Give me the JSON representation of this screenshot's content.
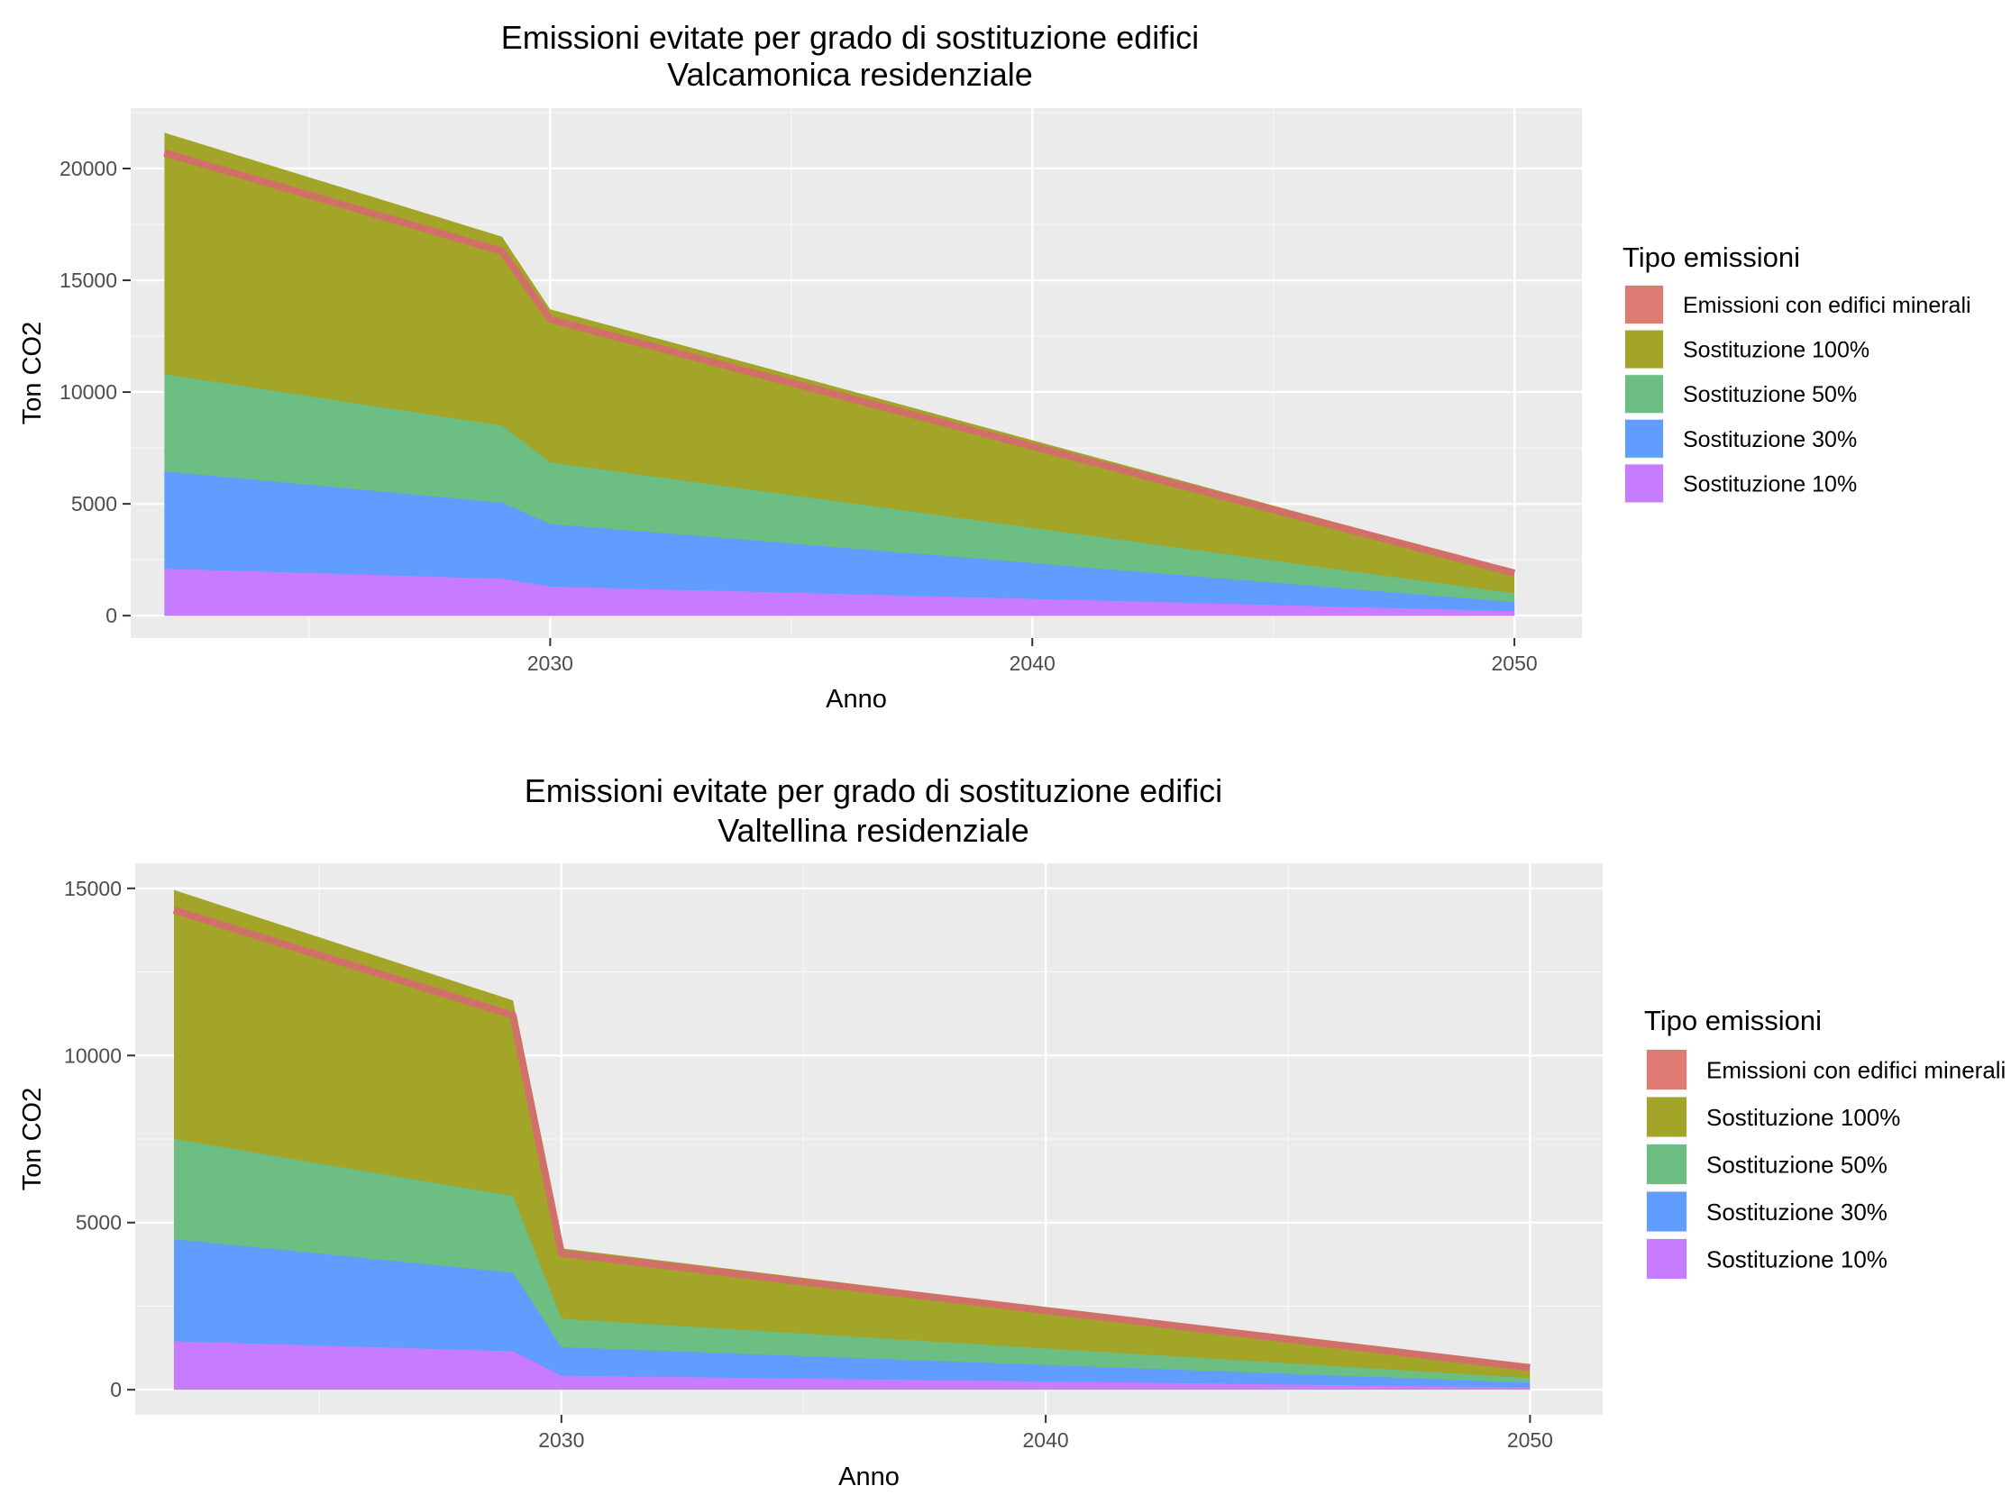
{
  "chart_data": [
    {
      "type": "area",
      "title": "Emissioni evitate per grado di sostituzione edifici",
      "subtitle": "Valcamonica residenziale",
      "xlabel": "Anno",
      "ylabel": "Ton CO2",
      "xlim": [
        2021.3,
        2051.4
      ],
      "ylim": [
        -1000,
        22700
      ],
      "xticks": [
        2030,
        2040,
        2050
      ],
      "yticks": [
        0,
        5000,
        10000,
        15000,
        20000
      ],
      "x": [
        2022,
        2029,
        2030,
        2050
      ],
      "grid": true,
      "legend": {
        "title": "Tipo emissioni",
        "position": "right"
      },
      "series": [
        {
          "name": "Sostituzione 10%",
          "color": "#C77CFF",
          "values": [
            2100,
            1650,
            1300,
            200
          ]
        },
        {
          "name": "Sostituzione 30%",
          "color": "#619CFF",
          "values": [
            6450,
            5050,
            4100,
            600
          ]
        },
        {
          "name": "Sostituzione 50%",
          "color": "#6CBE83",
          "values": [
            10800,
            8500,
            6850,
            1000
          ]
        },
        {
          "name": "Sostituzione 100%",
          "color": "#A3A528",
          "values": [
            21600,
            16950,
            13700,
            2000
          ]
        },
        {
          "name": "Emissioni con edifici minerali",
          "color": "#D07069",
          "values": [
            20700,
            16300,
            13250,
            1900
          ]
        }
      ],
      "legend_order": [
        "Emissioni con edifici minerali",
        "Sostituzione 100%",
        "Sostituzione 50%",
        "Sostituzione 30%",
        "Sostituzione 10%"
      ],
      "legend_colors": [
        "#E07B73",
        "#A3A528",
        "#6CBE83",
        "#619CFF",
        "#C77CFF"
      ]
    },
    {
      "type": "area",
      "title": "Emissioni evitate per grado di sostituzione edifici",
      "subtitle": "Valtellina residenziale",
      "xlabel": "Anno",
      "ylabel": "Ton CO2",
      "xlim": [
        2021.2,
        2051.5
      ],
      "ylim": [
        -750,
        15750
      ],
      "xticks": [
        2030,
        2040,
        2050
      ],
      "yticks": [
        0,
        5000,
        10000,
        15000
      ],
      "x": [
        2022,
        2029,
        2030,
        2050
      ],
      "grid": true,
      "legend": {
        "title": "Tipo emissioni",
        "position": "right"
      },
      "series": [
        {
          "name": "Sostituzione 10%",
          "color": "#C77CFF",
          "values": [
            1450,
            1150,
            420,
            70
          ]
        },
        {
          "name": "Sostituzione 30%",
          "color": "#619CFF",
          "values": [
            4500,
            3500,
            1270,
            210
          ]
        },
        {
          "name": "Sostituzione 50%",
          "color": "#6CBE83",
          "values": [
            7500,
            5800,
            2120,
            350
          ]
        },
        {
          "name": "Sostituzione 100%",
          "color": "#A3A528",
          "values": [
            14950,
            11650,
            4230,
            700
          ]
        },
        {
          "name": "Emissioni con edifici minerali",
          "color": "#D07069",
          "values": [
            14350,
            11200,
            4080,
            660
          ]
        }
      ],
      "legend_order": [
        "Emissioni con edifici minerali",
        "Sostituzione 100%",
        "Sostituzione 50%",
        "Sostituzione 30%",
        "Sostituzione 10%"
      ],
      "legend_colors": [
        "#E07B73",
        "#A3A528",
        "#6CBE83",
        "#619CFF",
        "#C77CFF"
      ]
    }
  ]
}
